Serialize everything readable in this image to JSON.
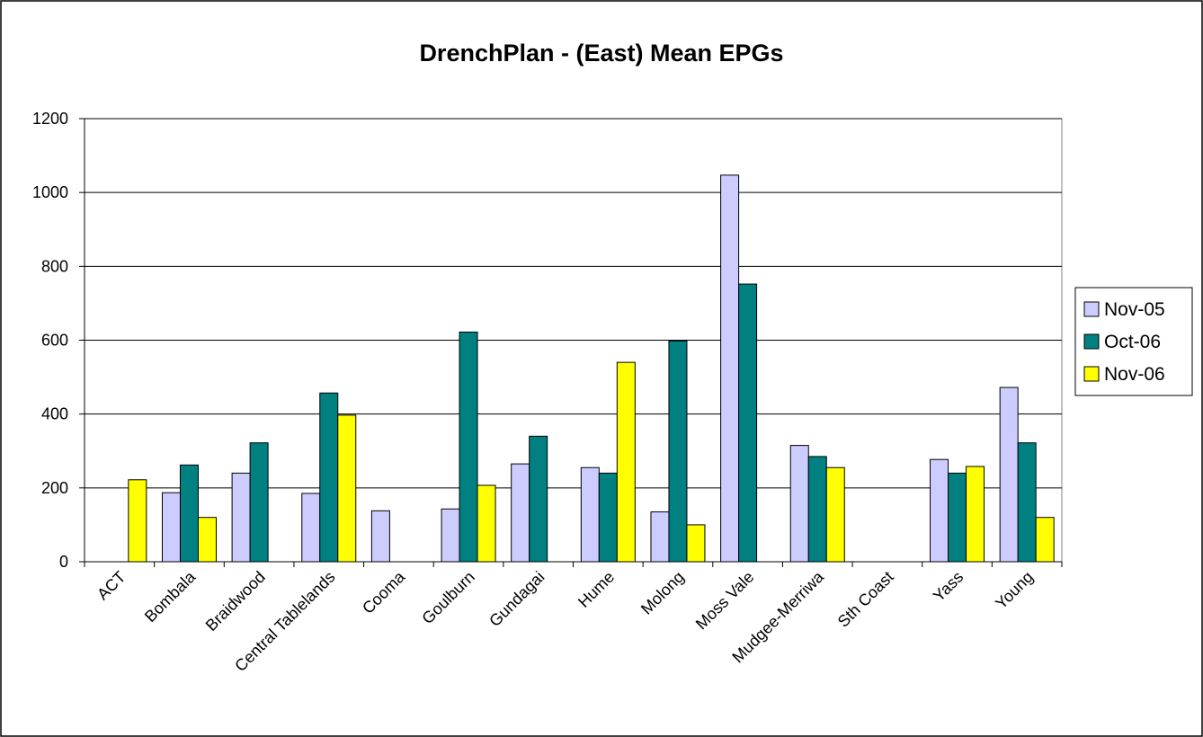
{
  "chart_data": {
    "type": "bar",
    "title": "DrenchPlan - (East)  Mean EPGs",
    "xlabel": "",
    "ylabel": "",
    "ylim": [
      0,
      1200
    ],
    "yticks": [
      0,
      200,
      400,
      600,
      800,
      1000,
      1200
    ],
    "grid": true,
    "legend_position": "right",
    "categories": [
      "ACT",
      "Bombala",
      "Braidwood",
      "Central Tablelands",
      "Cooma",
      "Goulburn",
      "Gundagai",
      "Hume",
      "Molong",
      "Moss Vale",
      "Mudgee-Merriwa",
      "Sth Coast",
      "Yass",
      "Young"
    ],
    "series": [
      {
        "name": "Nov-05",
        "color": "#ccccff",
        "values": [
          null,
          187,
          240,
          185,
          138,
          143,
          265,
          255,
          135,
          1047,
          315,
          null,
          277,
          472
        ]
      },
      {
        "name": "Oct-06",
        "color": "#008080",
        "values": [
          null,
          262,
          322,
          457,
          null,
          622,
          340,
          240,
          598,
          752,
          285,
          null,
          240,
          322
        ]
      },
      {
        "name": "Nov-06",
        "color": "#ffff00",
        "values": [
          222,
          120,
          null,
          397,
          null,
          207,
          null,
          540,
          100,
          null,
          255,
          null,
          258,
          120
        ]
      }
    ]
  }
}
